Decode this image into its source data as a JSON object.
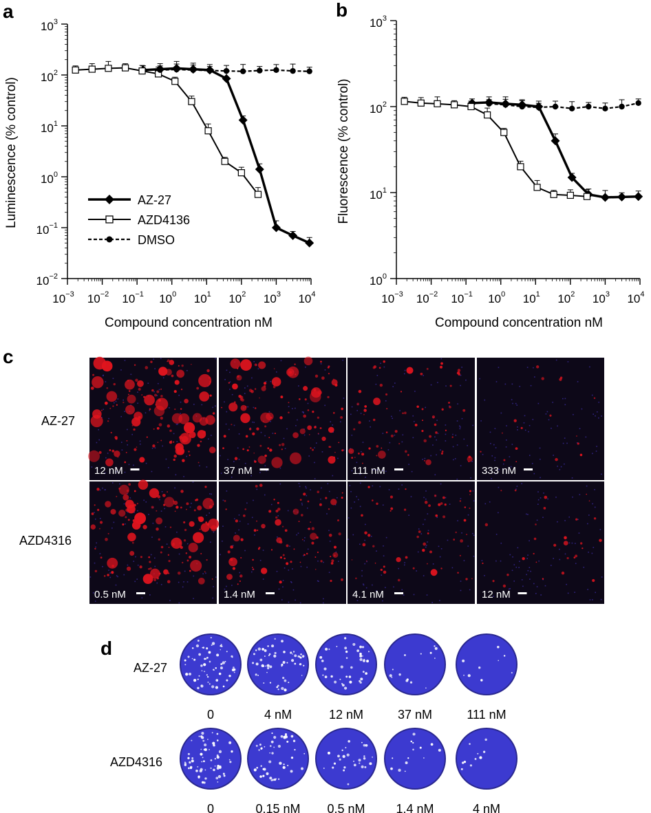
{
  "chart_data": [
    {
      "panel": "a",
      "type": "line",
      "xlabel": "Compound concentration nM",
      "ylabel": "Luminescence (% control)",
      "xscale": "log",
      "yscale": "log",
      "xlim": [
        0.001,
        10000
      ],
      "ylim": [
        0.01,
        1000
      ],
      "x_tick_exponents": [
        "−3",
        "−2",
        "−1",
        "0",
        "1",
        "2",
        "3",
        "4"
      ],
      "y_tick_exponents": [
        "−2",
        "−1",
        "0",
        "1",
        "2",
        "3"
      ],
      "legend_position": "bottom-left",
      "series": [
        {
          "name": "AZ-27",
          "marker": "diamond-filled",
          "line": "solid-bold",
          "x": [
            0.15,
            0.46,
            1.37,
            4.1,
            12.3,
            37,
            111,
            333,
            1000,
            3000,
            9000
          ],
          "y": [
            125,
            130,
            135,
            130,
            125,
            85,
            13,
            1.4,
            0.1,
            0.07,
            0.05
          ]
        },
        {
          "name": "AZD4136",
          "marker": "square-open",
          "line": "solid",
          "x": [
            0.0017,
            0.0051,
            0.015,
            0.046,
            0.14,
            0.41,
            1.23,
            3.7,
            11.1,
            33.3,
            100,
            300
          ],
          "y": [
            125,
            130,
            135,
            138,
            120,
            105,
            75,
            30,
            8,
            2,
            1.2,
            0.45
          ]
        },
        {
          "name": "DMSO",
          "marker": "circle-filled",
          "line": "dashed",
          "x": [
            0.46,
            1.37,
            4.1,
            12.3,
            37,
            111,
            333,
            1000,
            3000,
            9000
          ],
          "y": [
            125,
            128,
            125,
            122,
            120,
            118,
            122,
            125,
            120,
            118
          ]
        }
      ]
    },
    {
      "panel": "b",
      "type": "line",
      "xlabel": "Compound concentration nM",
      "ylabel": "Fluorescence (% control)",
      "xscale": "log",
      "yscale": "log",
      "xlim": [
        0.001,
        10000
      ],
      "ylim": [
        1,
        1000
      ],
      "x_tick_exponents": [
        "−3",
        "−2",
        "−1",
        "0",
        "1",
        "2",
        "3",
        "4"
      ],
      "y_tick_exponents": [
        "0",
        "1",
        "2",
        "3"
      ],
      "series": [
        {
          "name": "AZ-27",
          "marker": "diamond-filled",
          "line": "solid-bold",
          "x": [
            0.15,
            0.46,
            1.37,
            4.1,
            12.3,
            37,
            111,
            333,
            1000,
            3000,
            9000
          ],
          "y": [
            110,
            112,
            108,
            105,
            100,
            40,
            15,
            9.5,
            8.8,
            8.9,
            9
          ]
        },
        {
          "name": "AZD4136",
          "marker": "square-open",
          "line": "solid",
          "x": [
            0.0017,
            0.0051,
            0.015,
            0.046,
            0.14,
            0.41,
            1.23,
            3.7,
            11.1,
            33.3,
            100,
            300
          ],
          "y": [
            115,
            110,
            108,
            105,
            100,
            80,
            50,
            20,
            11.5,
            9.5,
            9.3,
            9
          ]
        },
        {
          "name": "DMSO",
          "marker": "circle-filled",
          "line": "dashed",
          "x": [
            0.46,
            1.37,
            4.1,
            12.3,
            37,
            111,
            333,
            1000,
            3000,
            9000
          ],
          "y": [
            108,
            105,
            100,
            98,
            100,
            95,
            100,
            95,
            100,
            110
          ]
        }
      ]
    }
  ],
  "legend": {
    "items": [
      "AZ-27",
      "AZD4136",
      "DMSO"
    ]
  },
  "panel_letters": {
    "a": "a",
    "b": "b",
    "c": "c",
    "d": "d"
  },
  "panel_c": {
    "rows": [
      {
        "label": "AZ-27",
        "concentrations": [
          "12 nM",
          "37 nM",
          "111 nM",
          "333 nM"
        ],
        "red_level": [
          0.95,
          0.8,
          0.45,
          0.05
        ]
      },
      {
        "label": "AZD4316",
        "concentrations": [
          "0.5 nM",
          "1.4 nM",
          "4.1 nM",
          "12 nM"
        ],
        "red_level": [
          0.9,
          0.6,
          0.35,
          0.15
        ]
      }
    ],
    "colors": {
      "background": "#0d0818",
      "cells": "#e0141e",
      "nuclei": "#3a2a9a"
    }
  },
  "panel_d": {
    "rows": [
      {
        "label": "AZ-27",
        "doses": [
          "0",
          "4 nM",
          "12 nM",
          "37 nM",
          "111 nM"
        ],
        "plaque_level": [
          1.0,
          0.9,
          0.6,
          0.1,
          0.02
        ]
      },
      {
        "label": "AZD4316",
        "doses": [
          "0",
          "0.15 nM",
          "0.5 nM",
          "1.4 nM",
          "4 nM"
        ],
        "plaque_level": [
          1.0,
          0.7,
          0.35,
          0.1,
          0.03
        ]
      }
    ],
    "colors": {
      "well": "#3c3ad0",
      "well_edge": "#2a2890",
      "plaque": "#ffffff"
    }
  }
}
